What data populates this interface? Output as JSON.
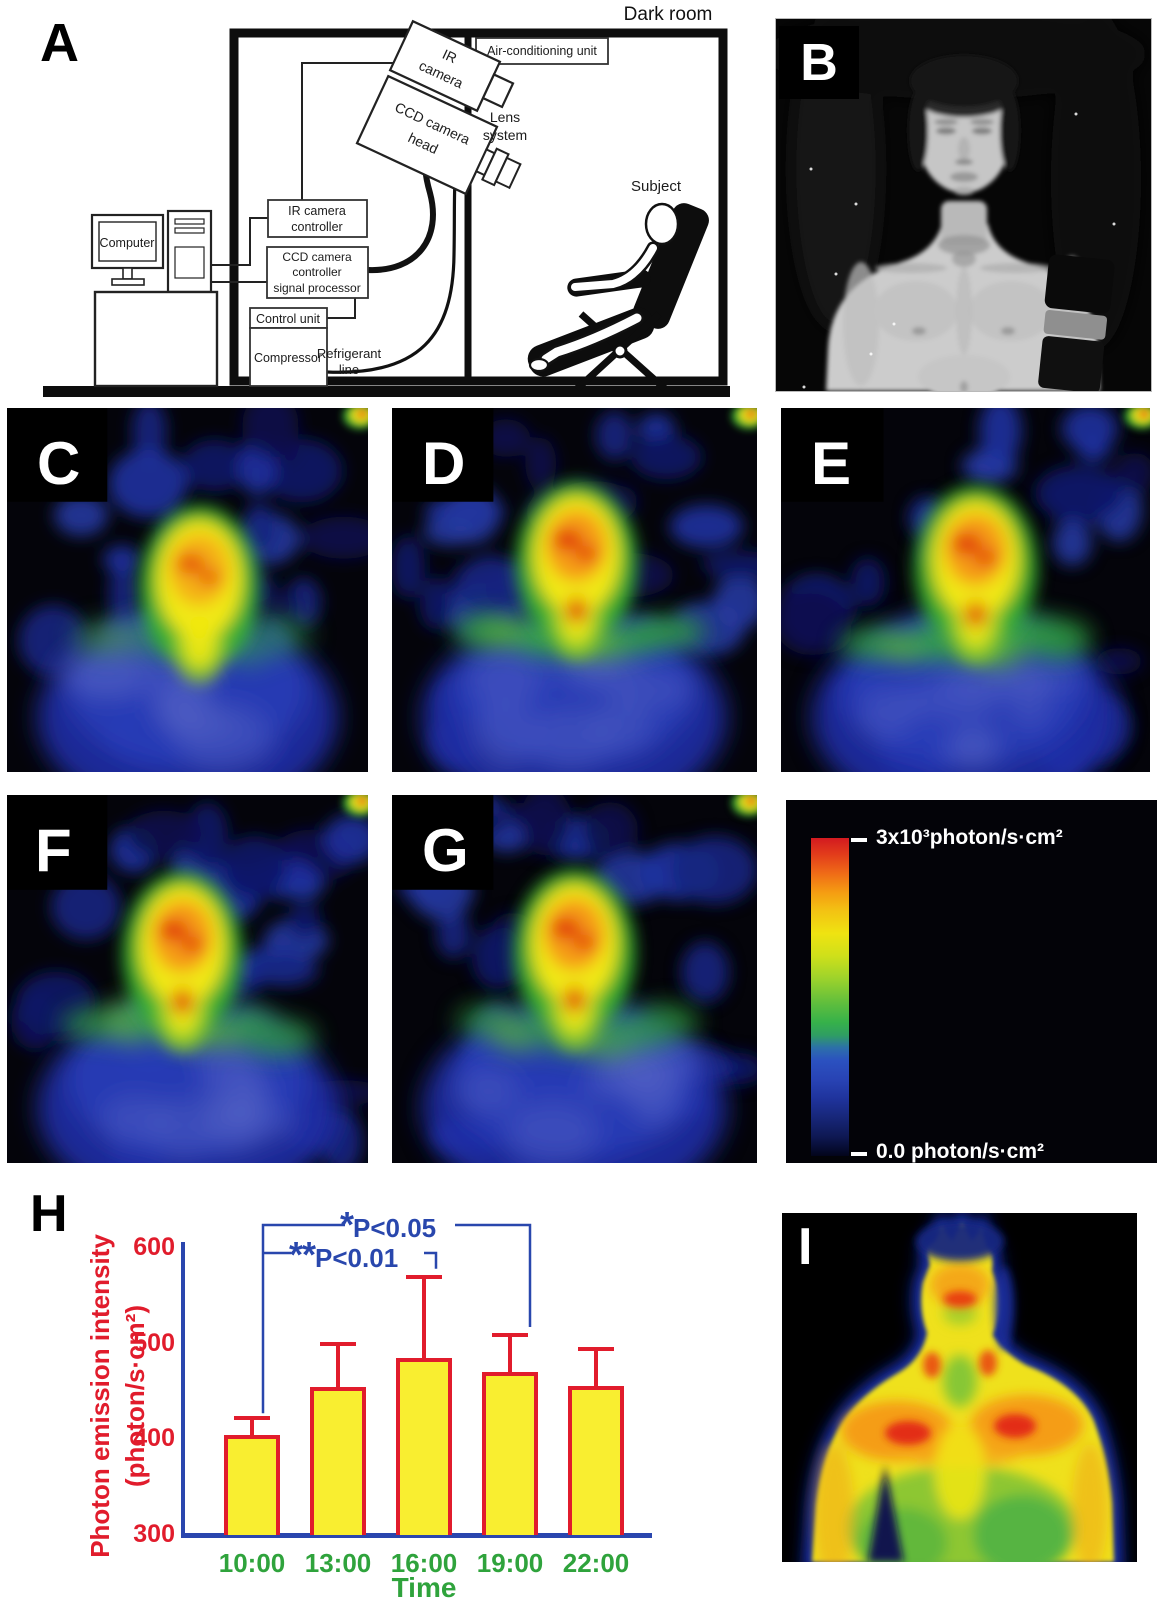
{
  "panel_labels": {
    "a": "A",
    "b": "B",
    "c": "C",
    "d": "D",
    "e": "E",
    "f": "F",
    "g": "G",
    "h": "H",
    "i": "I"
  },
  "diagram": {
    "room_title": "Dark room",
    "air_conditioning_unit": "Air-conditioning unit",
    "ir_camera": [
      "IR",
      "camera"
    ],
    "ccd_camera_head": [
      "CCD camera",
      "head"
    ],
    "lens_system": [
      "Lens",
      "system"
    ],
    "subject": "Subject",
    "computer": "Computer",
    "ir_camera_controller": [
      "IR camera",
      "controller"
    ],
    "ccd_camera_controller": [
      "CCD camera",
      "controller",
      "signal processor"
    ],
    "control_unit": "Control unit",
    "compressor": "Compressor",
    "refrigerant_line": [
      "Refrigerant",
      "line"
    ]
  },
  "colorbar": {
    "max_label": "3x10³photon/s·cm²",
    "min_label": "0.0 photon/s·cm²"
  },
  "chart_data": {
    "type": "bar",
    "ylabel": [
      "Photon emission intensity",
      "(photon/s·cm²)"
    ],
    "xlabel": "Time",
    "categories": [
      "10:00",
      "13:00",
      "16:00",
      "19:00",
      "22:00"
    ],
    "values": [
      405,
      455,
      485,
      470,
      456
    ],
    "error_upper": [
      17,
      45,
      85,
      39,
      38
    ],
    "ylim": [
      300,
      600
    ],
    "yticks": [
      600,
      500,
      400,
      300
    ],
    "grid": false,
    "legend": null,
    "bar_fill": "#f9ee30",
    "bar_border": "#e11c2c",
    "error_color": "#e11c2c",
    "axis_color": "#2a46ae",
    "y_tick_color": "#e11c2c",
    "x_tick_color": "#2fa33c",
    "significance": [
      {
        "stars": "*",
        "label": "P<0.05",
        "from": "10:00",
        "to": "19:00"
      },
      {
        "stars": "**",
        "label": "P<0.01",
        "from": "10:00",
        "to": "16:00"
      }
    ]
  }
}
